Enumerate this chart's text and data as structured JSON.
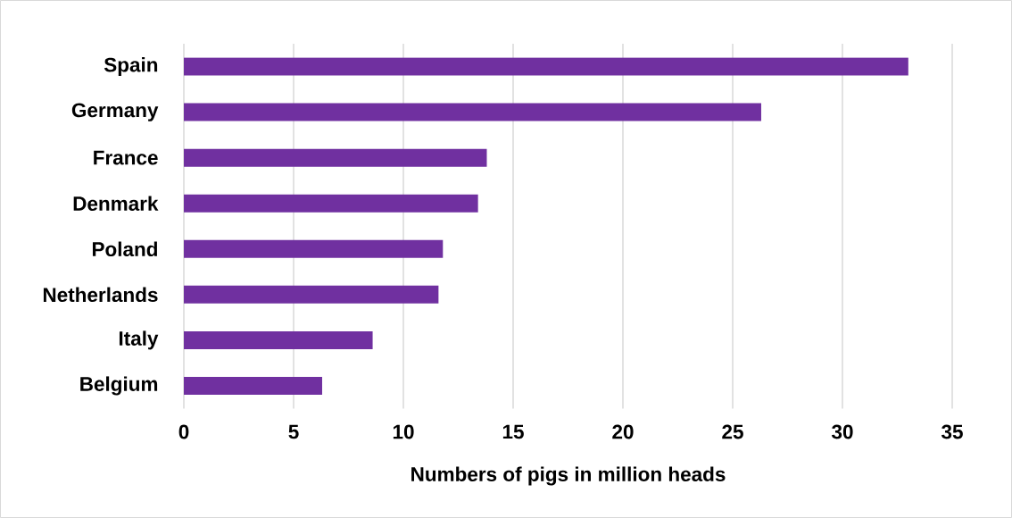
{
  "chart_data": {
    "type": "bar",
    "orientation": "horizontal",
    "categories": [
      "Spain",
      "Germany",
      "France",
      "Denmark",
      "Poland",
      "Netherlands",
      "Italy",
      "Belgium"
    ],
    "values": [
      33,
      26.3,
      13.8,
      13.4,
      11.8,
      11.6,
      8.6,
      6.3
    ],
    "color": "#7030a0",
    "xlabel": "Numbers of pigs in million heads",
    "xlim": [
      0,
      35
    ],
    "xticks": [
      0,
      5,
      10,
      15,
      20,
      25,
      30,
      35
    ],
    "grid": "x"
  }
}
